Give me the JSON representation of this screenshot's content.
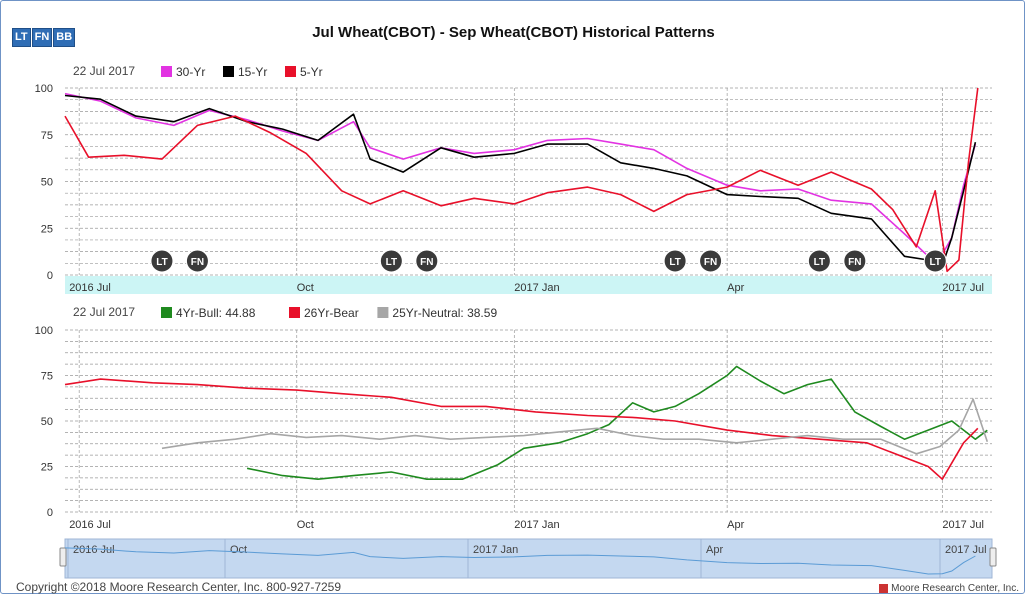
{
  "tabs": [
    "LT",
    "FN",
    "BB"
  ],
  "title": "Jul Wheat(CBOT) - Sep Wheat(CBOT) Historical Patterns",
  "footer": {
    "copyright": "Copyright ©2018 Moore Research Center, Inc. 800-927-7259",
    "brand": "Moore Research Center, Inc."
  },
  "chart_data": [
    {
      "type": "line",
      "date_label": "22 Jul 2017",
      "ylim": [
        0,
        100
      ],
      "yticks": [
        0,
        25,
        50,
        75,
        100
      ],
      "xlim": [
        "2016-06-25",
        "2017-07-22"
      ],
      "xticks": [
        {
          "label": "2016 Jul",
          "x": "2016-07-01"
        },
        {
          "label": "Oct",
          "x": "2016-10-01"
        },
        {
          "label": "2017 Jan",
          "x": "2017-01-01"
        },
        {
          "label": "Apr",
          "x": "2017-04-01"
        },
        {
          "label": "2017 Jul",
          "x": "2017-07-01"
        }
      ],
      "grid": true,
      "legend_position": "top-left",
      "series": [
        {
          "name": "30-Yr",
          "color": "#e233e2",
          "x": [
            "2016-06-25",
            "2016-07-10",
            "2016-07-25",
            "2016-08-10",
            "2016-08-25",
            "2016-09-10",
            "2016-09-25",
            "2016-10-10",
            "2016-10-25",
            "2016-11-01",
            "2016-11-15",
            "2016-12-01",
            "2016-12-15",
            "2017-01-01",
            "2017-01-15",
            "2017-02-01",
            "2017-02-15",
            "2017-03-01",
            "2017-03-15",
            "2017-04-01",
            "2017-04-15",
            "2017-05-01",
            "2017-05-15",
            "2017-06-01",
            "2017-06-15",
            "2017-06-25",
            "2017-07-01",
            "2017-07-05",
            "2017-07-10",
            "2017-07-15"
          ],
          "y": [
            97,
            93,
            84,
            80,
            88,
            83,
            77,
            72,
            82,
            68,
            62,
            68,
            65,
            67,
            72,
            73,
            70,
            67,
            57,
            48,
            45,
            46,
            40,
            38,
            22,
            10,
            11,
            20,
            48,
            70
          ]
        },
        {
          "name": "15-Yr",
          "color": "#000000",
          "x": [
            "2016-06-25",
            "2016-07-10",
            "2016-07-25",
            "2016-08-10",
            "2016-08-25",
            "2016-09-10",
            "2016-09-25",
            "2016-10-10",
            "2016-10-25",
            "2016-11-01",
            "2016-11-15",
            "2016-12-01",
            "2016-12-15",
            "2017-01-01",
            "2017-01-15",
            "2017-02-01",
            "2017-02-15",
            "2017-03-01",
            "2017-03-15",
            "2017-04-01",
            "2017-04-15",
            "2017-05-01",
            "2017-05-15",
            "2017-06-01",
            "2017-06-15",
            "2017-06-25",
            "2017-07-01",
            "2017-07-05",
            "2017-07-10",
            "2017-07-15"
          ],
          "y": [
            96,
            94,
            85,
            82,
            89,
            82,
            78,
            72,
            86,
            62,
            55,
            68,
            63,
            65,
            70,
            70,
            60,
            57,
            53,
            43,
            42,
            41,
            33,
            30,
            10,
            8,
            5,
            20,
            45,
            71
          ]
        },
        {
          "name": "5-Yr",
          "color": "#e8102a",
          "x": [
            "2016-06-25",
            "2016-07-05",
            "2016-07-20",
            "2016-08-05",
            "2016-08-20",
            "2016-09-05",
            "2016-09-20",
            "2016-10-05",
            "2016-10-20",
            "2016-11-01",
            "2016-11-15",
            "2016-12-01",
            "2016-12-15",
            "2017-01-01",
            "2017-01-15",
            "2017-02-01",
            "2017-02-15",
            "2017-03-01",
            "2017-03-15",
            "2017-04-01",
            "2017-04-15",
            "2017-05-01",
            "2017-05-15",
            "2017-06-01",
            "2017-06-10",
            "2017-06-20",
            "2017-06-28",
            "2017-07-03",
            "2017-07-08",
            "2017-07-12",
            "2017-07-16"
          ],
          "y": [
            85,
            63,
            64,
            62,
            80,
            85,
            76,
            65,
            45,
            38,
            45,
            37,
            41,
            38,
            44,
            47,
            43,
            34,
            43,
            47,
            56,
            48,
            55,
            46,
            35,
            15,
            45,
            2,
            8,
            60,
            100
          ]
        }
      ],
      "markers": [
        {
          "label": "LT",
          "x": "2016-08-05"
        },
        {
          "label": "FN",
          "x": "2016-08-20"
        },
        {
          "label": "LT",
          "x": "2016-11-10"
        },
        {
          "label": "FN",
          "x": "2016-11-25"
        },
        {
          "label": "LT",
          "x": "2017-03-10"
        },
        {
          "label": "FN",
          "x": "2017-03-25"
        },
        {
          "label": "LT",
          "x": "2017-05-10"
        },
        {
          "label": "FN",
          "x": "2017-05-25"
        },
        {
          "label": "LT",
          "x": "2017-06-28"
        }
      ]
    },
    {
      "type": "line",
      "date_label": "22 Jul 2017",
      "ylim": [
        0,
        100
      ],
      "yticks": [
        0,
        25,
        50,
        75,
        100
      ],
      "xlim": [
        "2016-06-25",
        "2017-07-22"
      ],
      "xticks": [
        {
          "label": "2016 Jul",
          "x": "2016-07-01"
        },
        {
          "label": "Oct",
          "x": "2016-10-01"
        },
        {
          "label": "2017 Jan",
          "x": "2017-01-01"
        },
        {
          "label": "Apr",
          "x": "2017-04-01"
        },
        {
          "label": "2017 Jul",
          "x": "2017-07-01"
        }
      ],
      "grid": true,
      "legend_position": "top-left",
      "series": [
        {
          "name": "4Yr-Bull",
          "value_label": "44.88",
          "color": "#1f8a1f",
          "x": [
            "2016-09-10",
            "2016-09-25",
            "2016-10-10",
            "2016-10-25",
            "2016-11-10",
            "2016-11-25",
            "2016-12-10",
            "2016-12-25",
            "2017-01-05",
            "2017-01-20",
            "2017-02-01",
            "2017-02-10",
            "2017-02-20",
            "2017-03-01",
            "2017-03-10",
            "2017-03-20",
            "2017-04-01",
            "2017-04-05",
            "2017-04-15",
            "2017-04-25",
            "2017-05-05",
            "2017-05-15",
            "2017-05-25",
            "2017-06-05",
            "2017-06-15",
            "2017-06-25",
            "2017-07-05",
            "2017-07-15",
            "2017-07-20"
          ],
          "y": [
            24,
            20,
            18,
            20,
            22,
            18,
            18,
            26,
            35,
            38,
            43,
            48,
            60,
            55,
            58,
            65,
            75,
            80,
            72,
            65,
            70,
            73,
            55,
            47,
            40,
            45,
            50,
            40,
            44.88
          ]
        },
        {
          "name": "26Yr-Bear",
          "color": "#e8102a",
          "x": [
            "2016-06-25",
            "2016-07-10",
            "2016-08-01",
            "2016-08-20",
            "2016-09-10",
            "2016-10-01",
            "2016-10-20",
            "2016-11-10",
            "2016-12-01",
            "2016-12-20",
            "2017-01-10",
            "2017-02-01",
            "2017-02-20",
            "2017-03-10",
            "2017-04-01",
            "2017-04-20",
            "2017-05-10",
            "2017-05-30",
            "2017-06-15",
            "2017-06-25",
            "2017-07-01",
            "2017-07-10",
            "2017-07-16"
          ],
          "y": [
            70,
            73,
            71,
            70,
            68,
            67,
            65,
            63,
            58,
            58,
            55,
            53,
            52,
            50,
            45,
            42,
            40,
            38,
            30,
            25,
            18,
            38,
            46
          ]
        },
        {
          "name": "25Yr-Neutral",
          "value_label": "38.59",
          "color": "#a6a6a6",
          "x": [
            "2016-08-05",
            "2016-08-20",
            "2016-09-05",
            "2016-09-20",
            "2016-10-05",
            "2016-10-20",
            "2016-11-05",
            "2016-11-20",
            "2016-12-05",
            "2016-12-20",
            "2017-01-05",
            "2017-01-20",
            "2017-02-05",
            "2017-02-20",
            "2017-03-05",
            "2017-03-20",
            "2017-04-05",
            "2017-04-20",
            "2017-05-05",
            "2017-05-20",
            "2017-06-05",
            "2017-06-20",
            "2017-06-30",
            "2017-07-08",
            "2017-07-14",
            "2017-07-20"
          ],
          "y": [
            35,
            38,
            40,
            43,
            41,
            42,
            40,
            42,
            40,
            41,
            42,
            44,
            46,
            42,
            40,
            40,
            38,
            40,
            42,
            40,
            40,
            32,
            36,
            45,
            62,
            38.59
          ]
        }
      ]
    }
  ],
  "navigator": {
    "xticks": [
      "2016 Jul",
      "Oct",
      "2017 Jan",
      "Apr",
      "2017 Jul"
    ],
    "color": "#5b9bd5"
  }
}
